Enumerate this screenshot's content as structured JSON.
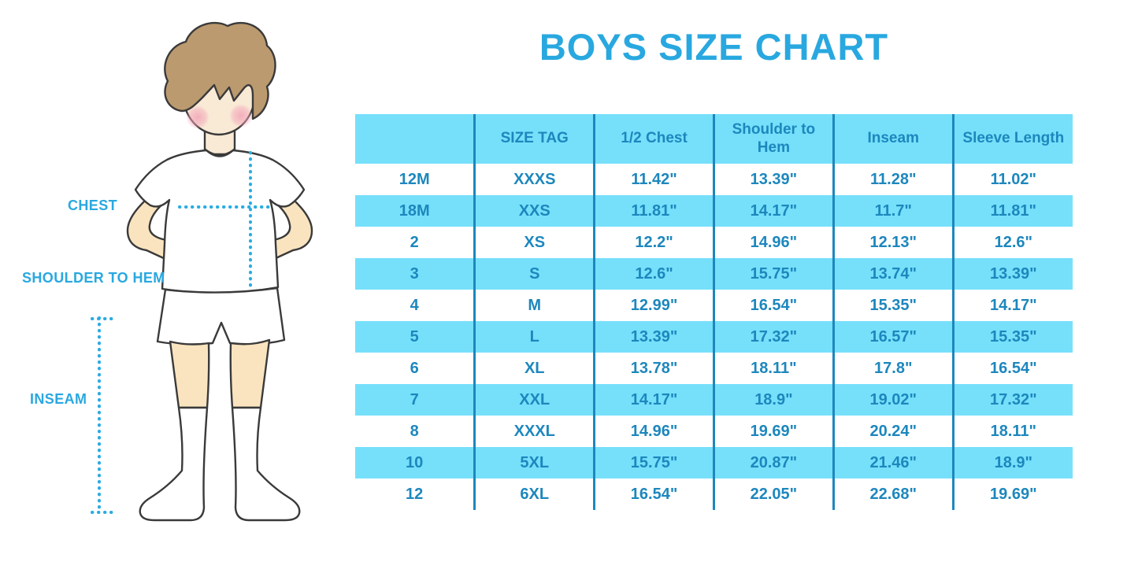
{
  "title": "BOYS SIZE CHART",
  "figure": {
    "labels": {
      "chest": "CHEST",
      "shoulder_to_hem": "SHOULDER TO HEM",
      "inseam": "INSEAM"
    }
  },
  "colors": {
    "title_cyan": "#29A8E0",
    "table_band_blue": "#76E0FB",
    "table_text_blue": "#1D87BD",
    "dotted_line_cyan": "#29ABE2",
    "skin": "#FAE4C0",
    "hair_brown": "#BC9A6F"
  },
  "chart_data": {
    "type": "table",
    "title": "BOYS SIZE CHART",
    "columns": [
      "",
      "SIZE TAG",
      "1/2 Chest",
      "Shoulder to Hem",
      "Inseam",
      "Sleeve Length"
    ],
    "rows": [
      [
        "12M",
        "XXXS",
        "11.42\"",
        "13.39\"",
        "11.28\"",
        "11.02\""
      ],
      [
        "18M",
        "XXS",
        "11.81\"",
        "14.17\"",
        "11.7\"",
        "11.81\""
      ],
      [
        "2",
        "XS",
        "12.2\"",
        "14.96\"",
        "12.13\"",
        "12.6\""
      ],
      [
        "3",
        "S",
        "12.6\"",
        "15.75\"",
        "13.74\"",
        "13.39\""
      ],
      [
        "4",
        "M",
        "12.99\"",
        "16.54\"",
        "15.35\"",
        "14.17\""
      ],
      [
        "5",
        "L",
        "13.39\"",
        "17.32\"",
        "16.57\"",
        "15.35\""
      ],
      [
        "6",
        "XL",
        "13.78\"",
        "18.11\"",
        "17.8\"",
        "16.54\""
      ],
      [
        "7",
        "XXL",
        "14.17\"",
        "18.9\"",
        "19.02\"",
        "17.32\""
      ],
      [
        "8",
        "XXXL",
        "14.96\"",
        "19.69\"",
        "20.24\"",
        "18.11\""
      ],
      [
        "10",
        "5XL",
        "15.75\"",
        "20.87\"",
        "21.46\"",
        "18.9\""
      ],
      [
        "12",
        "6XL",
        "16.54\"",
        "22.05\"",
        "22.68\"",
        "19.69\""
      ]
    ],
    "row_striping": "first data row white, alternating light-blue bands; header band light-blue",
    "units": "inches"
  }
}
